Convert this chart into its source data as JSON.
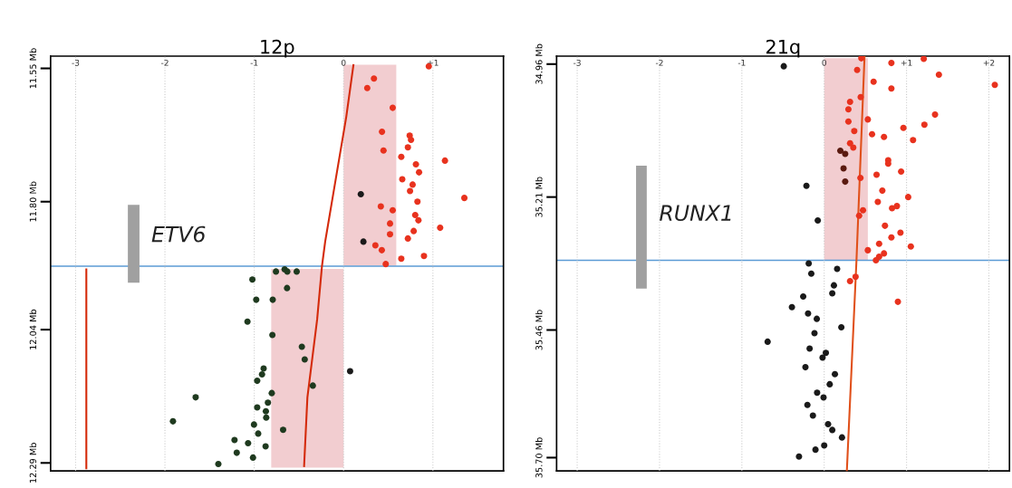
{
  "chart_data": [
    {
      "type": "scatter",
      "title": "12p",
      "grid": "x",
      "xlim": [
        -3.28,
        1.79
      ],
      "ylim": [
        12.305,
        11.527
      ],
      "xticks": [
        {
          "value": -3,
          "label": "-3"
        },
        {
          "value": -2,
          "label": "-2"
        },
        {
          "value": -1,
          "label": "-1"
        },
        {
          "value": 0,
          "label": "0"
        },
        {
          "value": 1,
          "label": "+1"
        }
      ],
      "yticks": [
        {
          "value": 11.55,
          "label": "11.55 Mb"
        },
        {
          "value": 11.8,
          "label": "11.80 Mb"
        },
        {
          "value": 12.04,
          "label": "12.04 Mb"
        },
        {
          "value": 12.29,
          "label": "12.29 Mb"
        }
      ],
      "ref_lines": [
        {
          "axis": "y",
          "value": 11.921,
          "color": "#5b9bd5"
        }
      ],
      "annotations": [
        "ETV6"
      ],
      "series": [
        {
          "type": "area",
          "color": "#f0c4c8",
          "x": [
            0,
            0.59,
            0.59,
            0
          ],
          "values": [
            11.543,
            11.543,
            11.92,
            11.92
          ]
        },
        {
          "type": "area",
          "color": "#f0c4c8",
          "x": [
            0,
            -0.81,
            -0.81,
            0
          ],
          "values": [
            11.926,
            11.926,
            12.299,
            12.299
          ]
        },
        {
          "type": "bar",
          "color": "#a0a0a0",
          "x": [
            -2.35
          ],
          "values": [
            0.146
          ],
          "base": [
            11.806
          ]
        },
        {
          "type": "line",
          "color": "#d42a0a",
          "x": [
            -2.88,
            -2.88
          ],
          "values": [
            11.927,
            12.3
          ]
        },
        {
          "type": "line",
          "color": "#d42a0a",
          "x": [
            0.11,
            0.03,
            -0.206,
            -0.242,
            -0.296,
            -0.405,
            -0.442
          ],
          "values": [
            11.544,
            11.641,
            11.875,
            11.921,
            12.021,
            12.167,
            12.296
          ]
        },
        {
          "type": "scatter",
          "marker": "circle",
          "color": "#e8321e",
          "x": [
            0.954,
            0.34,
            0.265,
            0.55,
            0.43,
            0.74,
            0.755,
            0.72,
            0.447,
            0.646,
            1.135,
            0.81,
            0.845,
            0.657,
            0.773,
            0.744,
            1.352,
            0.827,
            0.417,
            0.55,
            0.802,
            0.838,
            0.52,
            1.081,
            0.785,
            0.52,
            0.72,
            0.356,
            0.428,
            0.9,
            0.646,
            0.472
          ],
          "values": [
            11.546,
            11.569,
            11.587,
            11.624,
            11.669,
            11.676,
            11.684,
            11.698,
            11.704,
            11.716,
            11.723,
            11.73,
            11.745,
            11.758,
            11.768,
            11.78,
            11.793,
            11.8,
            11.809,
            11.816,
            11.825,
            11.835,
            11.841,
            11.849,
            11.855,
            11.861,
            11.869,
            11.882,
            11.891,
            11.902,
            11.907,
            11.917
          ]
        },
        {
          "type": "scatter",
          "marker": "circle",
          "color": "#1a1a1a",
          "x": [
            0.193,
            0.222,
            0.073
          ],
          "values": [
            11.786,
            11.875,
            12.118
          ]
        },
        {
          "type": "scatter",
          "marker": "circle",
          "color": "#1f3a1f",
          "x": [
            -0.757,
            -0.66,
            -0.63,
            -0.525,
            -1.021,
            -0.633,
            -0.978,
            -0.793,
            -1.076,
            -0.797,
            -0.467,
            -0.435,
            -0.895,
            -0.913,
            -0.967,
            -0.344,
            -1.656,
            -0.804,
            -0.847,
            -0.967,
            -0.87,
            -0.866,
            -1.91,
            -1.003,
            -0.677,
            -0.956,
            -1.221,
            -1.069,
            -0.873,
            -1.196,
            -1.014,
            -1.402
          ],
          "values": [
            11.931,
            11.927,
            11.931,
            11.931,
            11.946,
            11.962,
            11.984,
            11.984,
            12.025,
            12.05,
            12.072,
            12.096,
            12.113,
            12.124,
            12.136,
            12.145,
            12.167,
            12.159,
            12.177,
            12.186,
            12.193,
            12.205,
            12.212,
            12.218,
            12.228,
            12.235,
            12.247,
            12.253,
            12.259,
            12.271,
            12.28,
            12.292
          ]
        }
      ]
    },
    {
      "type": "scatter",
      "title": "21q",
      "grid": "x",
      "xlim": [
        -3.25,
        2.25
      ],
      "ylim": [
        35.725,
        34.945
      ],
      "xticks": [
        {
          "value": -3,
          "label": "-3"
        },
        {
          "value": -2,
          "label": "-2"
        },
        {
          "value": -1,
          "label": "-1"
        },
        {
          "value": 0,
          "label": "0"
        },
        {
          "value": 1,
          "label": "+1"
        },
        {
          "value": 2,
          "label": "+2"
        }
      ],
      "yticks": [
        {
          "value": 34.96,
          "label": "34.96 Mb"
        },
        {
          "value": 35.21,
          "label": "35.21 Mb"
        },
        {
          "value": 35.46,
          "label": "35.46 Mb"
        },
        {
          "value": 35.7,
          "label": "35.70 Mb"
        }
      ],
      "ref_lines": [
        {
          "axis": "y",
          "value": 35.329,
          "color": "#5b9bd5"
        }
      ],
      "annotations": [
        "RUNX1"
      ],
      "series": [
        {
          "type": "area",
          "color": "#f0c4c8",
          "x": [
            0,
            0.53,
            0.53,
            0
          ],
          "values": [
            34.949,
            34.949,
            35.329,
            35.329
          ]
        },
        {
          "type": "bar",
          "color": "#a0a0a0",
          "x": [
            -2.22
          ],
          "values": [
            0.231
          ],
          "base": [
            35.151
          ]
        },
        {
          "type": "line",
          "color": "#e0501a",
          "x": [
            0.49,
            0.392,
            0.275
          ],
          "values": [
            34.945,
            35.329,
            35.725
          ]
        },
        {
          "type": "scatter",
          "marker": "circle",
          "color": "#e8321e",
          "x": [
            0.451,
            1.209,
            0.816,
            0.4,
            1.393,
            2.072,
            0.6,
            0.816,
            0.443,
            0.314,
            0.294,
            0.53,
            0.294,
            1.346,
            0.962,
            1.217,
            0.365,
            0.581,
            0.726,
            1.079,
            0.314,
            0.353,
            0.777,
            0.777,
            0.934,
            0.636,
            0.44,
            0.706,
            1.02,
            0.651,
            0.824,
            0.883,
            0.471,
            0.424,
            0.738,
            0.926,
            0.816,
            0.667,
            1.052,
            0.53,
            0.726,
            0.667,
            0.628,
            0.381,
            0.314,
            0.895
          ],
          "values": [
            34.949,
            34.95,
            34.958,
            34.971,
            34.98,
            34.999,
            34.993,
            35.006,
            35.022,
            35.031,
            35.045,
            35.064,
            35.068,
            35.055,
            35.08,
            35.074,
            35.086,
            35.092,
            35.097,
            35.103,
            35.109,
            35.117,
            35.141,
            35.147,
            35.162,
            35.168,
            35.174,
            35.198,
            35.21,
            35.219,
            35.231,
            35.227,
            35.235,
            35.245,
            35.264,
            35.277,
            35.286,
            35.298,
            35.303,
            35.31,
            35.316,
            35.322,
            35.329,
            35.36,
            35.368,
            35.407
          ]
        },
        {
          "type": "scatter",
          "marker": "circle",
          "color": "#5a1a10",
          "x": [
            0.196,
            0.255,
            0.235,
            0.255
          ],
          "values": [
            35.123,
            35.129,
            35.156,
            35.181
          ]
        },
        {
          "type": "scatter",
          "marker": "circle",
          "color": "#1a1a1a",
          "x": [
            -0.491,
            -0.216,
            -0.078,
            -0.188,
            0.157,
            -0.157,
            0.118,
            0.098,
            -0.255,
            -0.392,
            -0.196,
            -0.09,
            0.208,
            -0.118,
            -0.687,
            -0.177,
            0.02,
            -0.02,
            -0.228,
            0.13,
            0.067,
            -0.086,
            -0.008,
            -0.204,
            -0.137,
            0.047,
            0.098,
            0.216,
            0.0,
            -0.106,
            -0.306
          ],
          "values": [
            34.964,
            35.189,
            35.254,
            35.335,
            35.345,
            35.354,
            35.376,
            35.391,
            35.397,
            35.417,
            35.429,
            35.439,
            35.455,
            35.466,
            35.482,
            35.495,
            35.503,
            35.512,
            35.53,
            35.543,
            35.562,
            35.578,
            35.587,
            35.601,
            35.621,
            35.637,
            35.648,
            35.662,
            35.677,
            35.685,
            35.698
          ]
        }
      ]
    }
  ]
}
